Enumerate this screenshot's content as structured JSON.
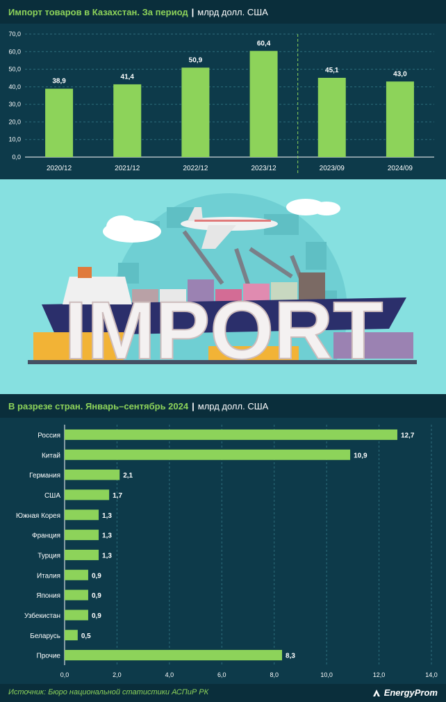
{
  "chart1": {
    "title": "Импорт товаров в Казахстан. За период",
    "separator": "|",
    "unit": "млрд долл. США"
  },
  "chart2": {
    "title": "В разрезе стран. Январь–сентябрь 2024",
    "separator": "|",
    "unit": "млрд долл. США"
  },
  "banner": {
    "word": "IMPORT"
  },
  "footer": {
    "source": "Источник: Бюро национальной статистики АСПиР РК",
    "brand": "EnergyProm"
  },
  "colors": {
    "bar": "#8dd35a",
    "background": "#0d3a4a",
    "header": "#0a2e3b",
    "accent_text": "#8dd35a",
    "grid": "#2e6f7d"
  },
  "chart_data": [
    {
      "type": "bar",
      "title": "Импорт товаров в Казахстан. За период",
      "unit": "млрд долл. США",
      "categories": [
        "2020/12",
        "2021/12",
        "2022/12",
        "2023/12",
        "2023/09",
        "2024/09"
      ],
      "values": [
        38.9,
        41.4,
        50.9,
        60.4,
        45.1,
        43.0
      ],
      "value_labels": [
        "38,9",
        "41,4",
        "50,9",
        "60,4",
        "45,1",
        "43,0"
      ],
      "y_ticks": [
        "0,0",
        "10,0",
        "20,0",
        "30,0",
        "40,0",
        "50,0",
        "60,0",
        "70,0"
      ],
      "ylim": [
        0,
        70
      ],
      "divider_after_category": 3,
      "grid": true,
      "orientation": "vertical"
    },
    {
      "type": "bar",
      "title": "В разрезе стран. Январь–сентябрь 2024",
      "unit": "млрд долл. США",
      "categories": [
        "Россия",
        "Китай",
        "Германия",
        "США",
        "Южная Корея",
        "Франция",
        "Турция",
        "Италия",
        "Япония",
        "Узбекистан",
        "Беларусь",
        "Прочие"
      ],
      "values": [
        12.7,
        10.9,
        2.1,
        1.7,
        1.3,
        1.3,
        1.3,
        0.9,
        0.9,
        0.9,
        0.5,
        8.3
      ],
      "value_labels": [
        "12,7",
        "10,9",
        "2,1",
        "1,7",
        "1,3",
        "1,3",
        "1,3",
        "0,9",
        "0,9",
        "0,9",
        "0,5",
        "8,3"
      ],
      "x_ticks": [
        "0,0",
        "2,0",
        "4,0",
        "6,0",
        "8,0",
        "10,0",
        "12,0",
        "14,0"
      ],
      "xlim": [
        0,
        14
      ],
      "grid": true,
      "orientation": "horizontal"
    }
  ]
}
